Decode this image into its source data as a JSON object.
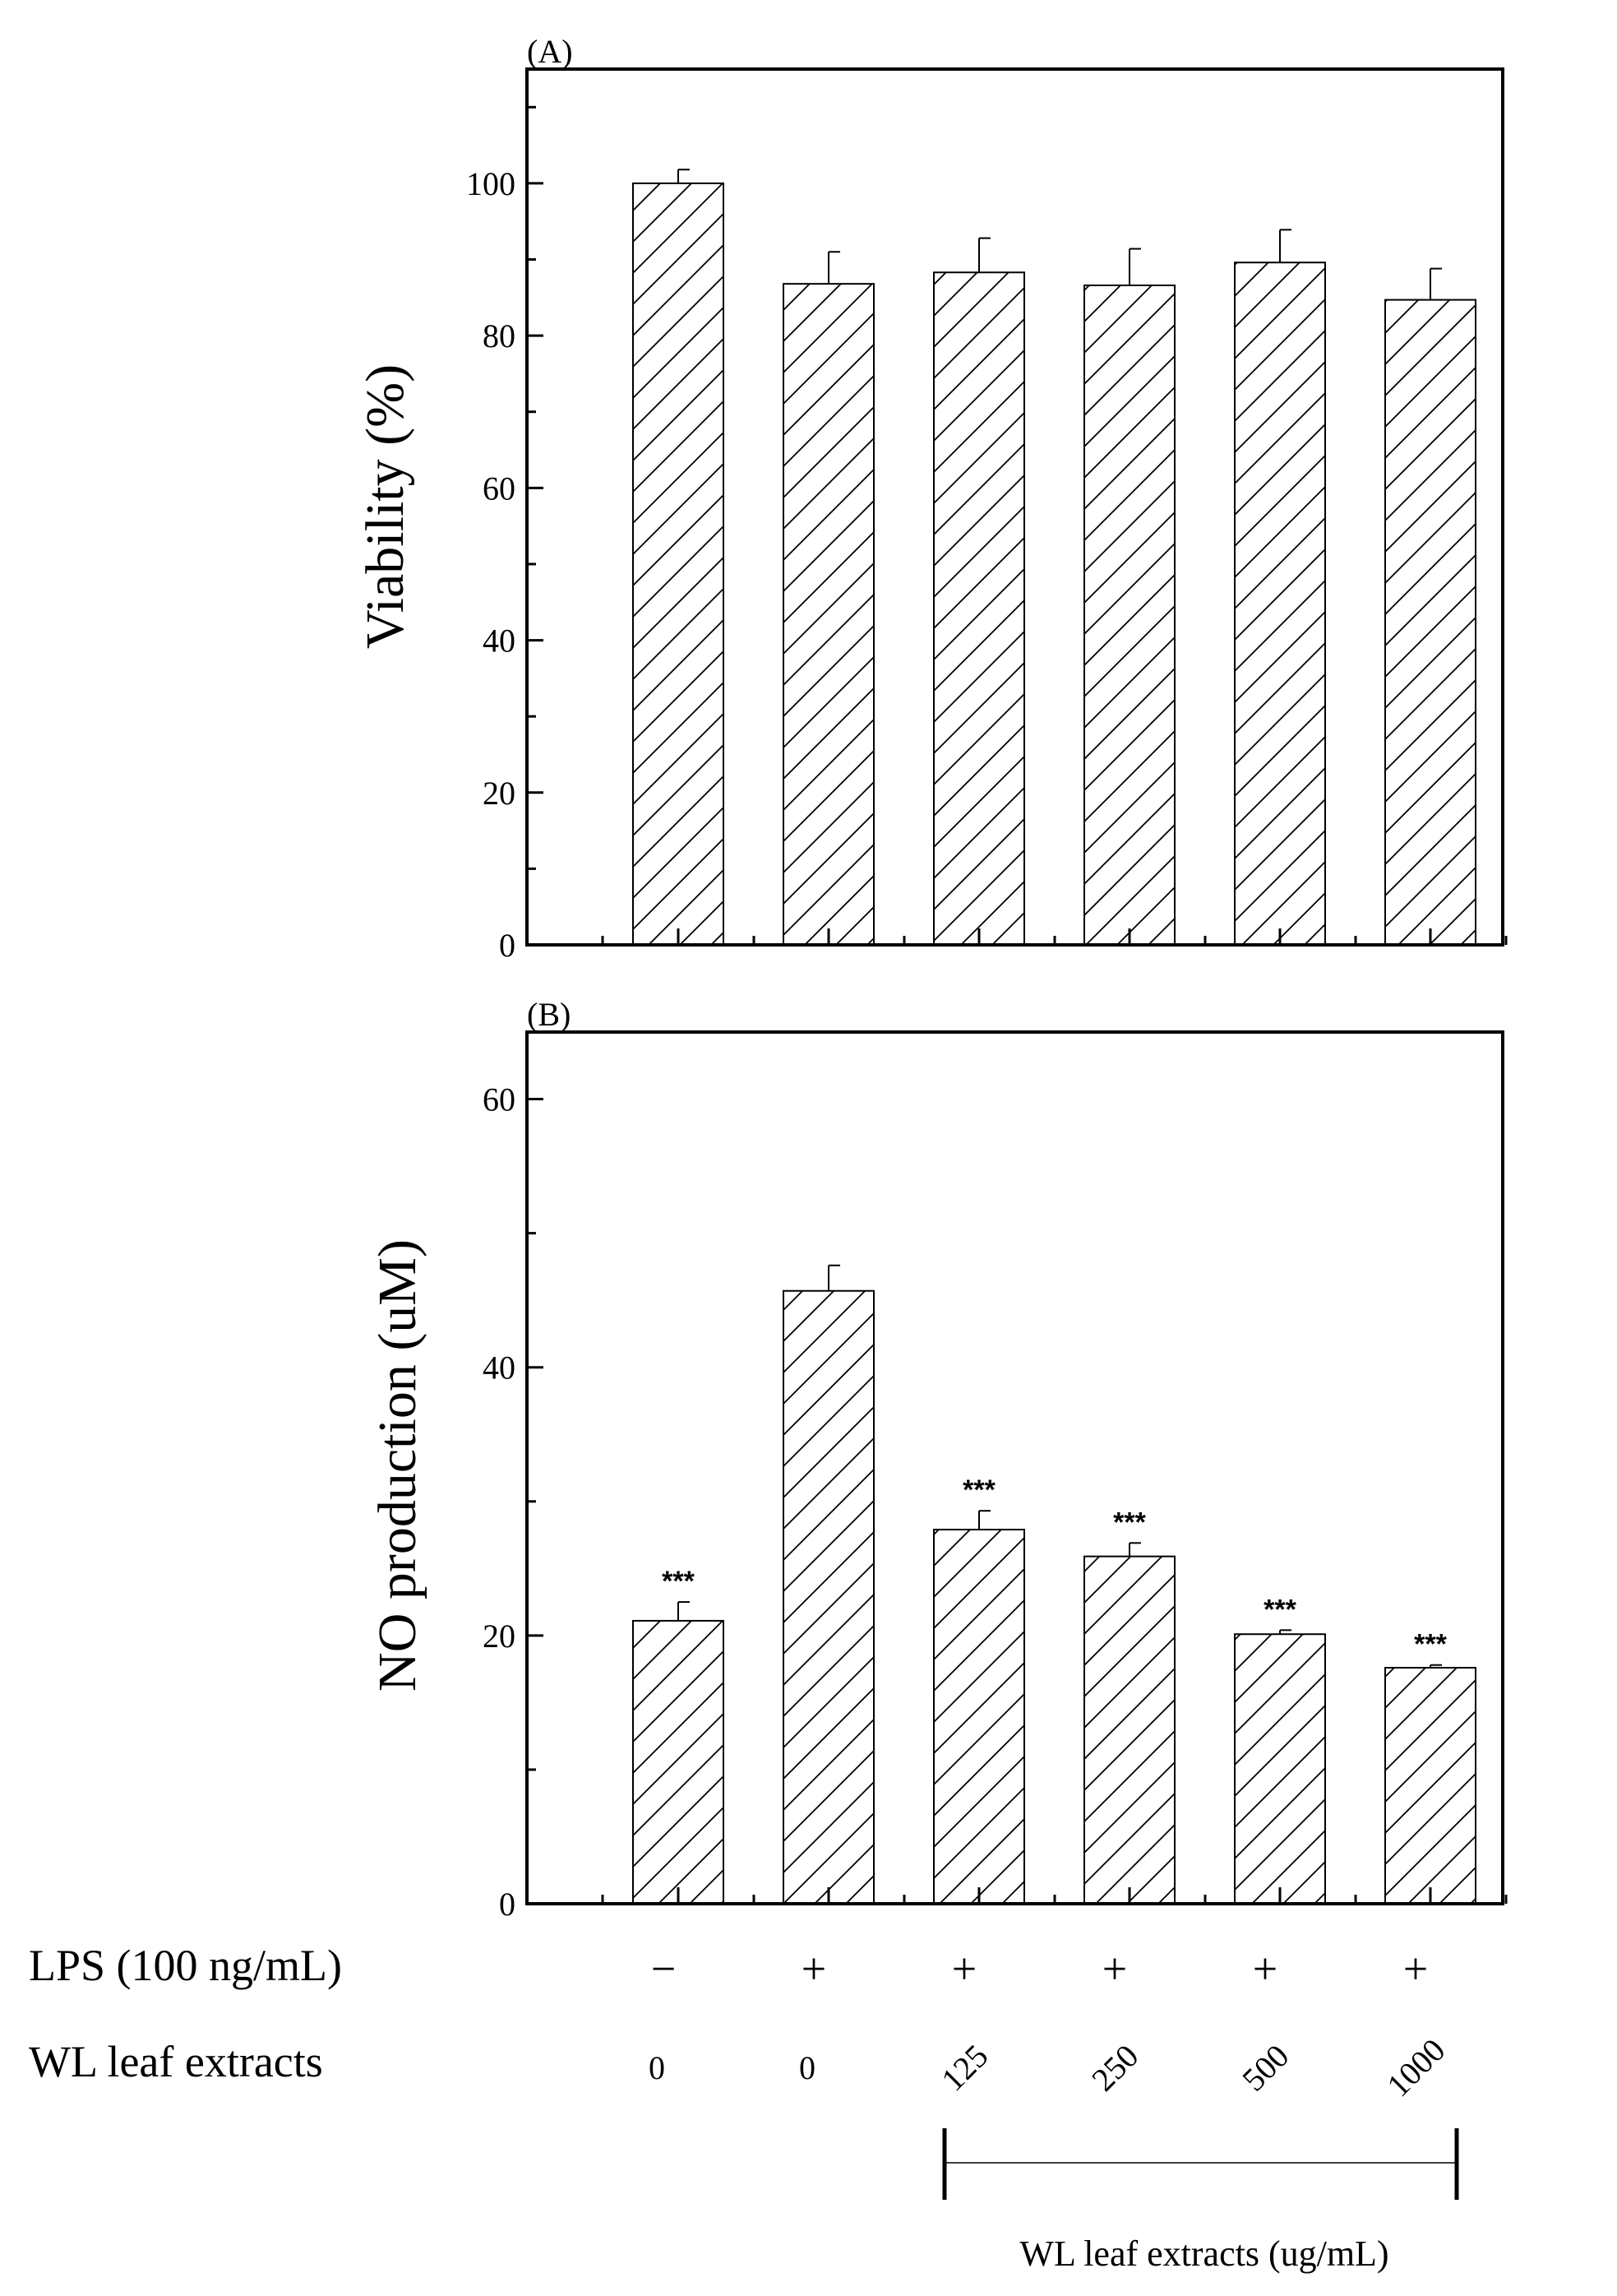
{
  "chart_data": [
    {
      "type": "bar",
      "panel_label": "(A)",
      "ylabel": "Viability (%)",
      "ylim": [
        0,
        115
      ],
      "yticks": [
        0,
        20,
        40,
        60,
        80,
        100
      ],
      "categories": [
        "1",
        "2",
        "3",
        "4",
        "5",
        "6"
      ],
      "values": [
        100,
        86.8,
        88.3,
        86.6,
        89.6,
        84.7
      ],
      "errors": [
        1.8,
        4.2,
        4.5,
        4.8,
        4.3,
        4.1
      ],
      "significance": [
        "",
        "",
        "",
        "",
        "",
        ""
      ],
      "bar_fill": "hatched",
      "grid": false
    },
    {
      "type": "bar",
      "panel_label": "(B)",
      "ylabel": "NO production (uM)",
      "ylim": [
        0,
        65
      ],
      "yticks": [
        0,
        20,
        40,
        60
      ],
      "categories": [
        "1",
        "2",
        "3",
        "4",
        "5",
        "6"
      ],
      "values": [
        21.1,
        45.7,
        27.9,
        25.9,
        20.1,
        17.6
      ],
      "errors": [
        1.4,
        1.9,
        1.4,
        1.0,
        0.3,
        0.2
      ],
      "significance": [
        "***",
        "",
        "***",
        "***",
        "***",
        "***"
      ],
      "bar_fill": "hatched",
      "grid": false
    }
  ],
  "conditions": {
    "lps_label": "LPS (100 ng/mL)",
    "lps_values": [
      "−",
      "+",
      "+",
      "+",
      "+",
      "+"
    ],
    "extract_label": "WL leaf extracts",
    "extract_values": [
      "0",
      "0",
      "125",
      "250",
      "500",
      "1000"
    ],
    "bracket_label": "WL leaf extracts (ug/mL)"
  },
  "colors": {
    "bar_fill": "#ffffff",
    "bar_stroke": "#000000",
    "hatch": "#000000",
    "axis": "#000000"
  }
}
